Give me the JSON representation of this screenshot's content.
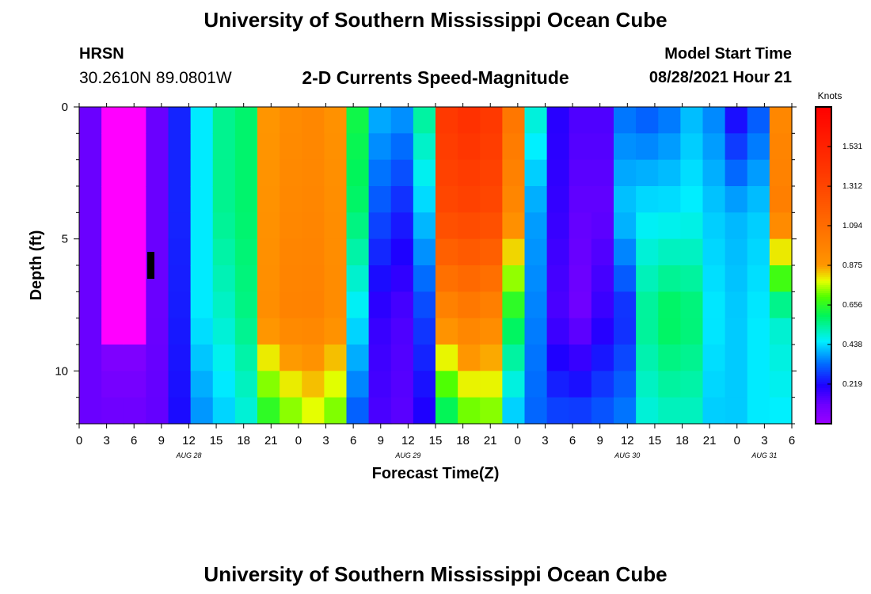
{
  "header": {
    "title": "University of Southern Mississippi Ocean Cube",
    "station": "HRSN",
    "coords": "30.2610N  89.0801W",
    "product": "2-D Currents Speed-Magnitude",
    "model_label": "Model Start Time",
    "model_time": "08/28/2021 Hour 21"
  },
  "footer": {
    "title": "University of Southern Mississippi Ocean Cube"
  },
  "chart_data": {
    "type": "heatmap",
    "title": "2-D Currents Speed-Magnitude",
    "xlabel": "Forecast Time(Z)",
    "ylabel": "Depth (ft)",
    "x_tick_labels": [
      "0",
      "3",
      "6",
      "9",
      "12",
      "15",
      "18",
      "21",
      "0",
      "3",
      "6",
      "9",
      "12",
      "15",
      "18",
      "21",
      "0",
      "3",
      "6",
      "9",
      "12",
      "15",
      "18",
      "21",
      "0",
      "3",
      "6"
    ],
    "x_day_labels": [
      {
        "label": "AUG 28",
        "at_tick": 4
      },
      {
        "label": "AUG 29",
        "at_tick": 12
      },
      {
        "label": "AUG 30",
        "at_tick": 20
      },
      {
        "label": "AUG 31",
        "at_tick": 25
      }
    ],
    "y_tick_labels": [
      "0",
      "5",
      "10"
    ],
    "ylim": [
      0,
      12
    ],
    "y_inverted": true,
    "colorbar": {
      "units": "Knots",
      "ticks": [
        "0.219",
        "0.438",
        "0.656",
        "0.875",
        "1.094",
        "1.312",
        "1.531"
      ],
      "vmin": 0,
      "vmax": 1.75
    },
    "profile": {
      "depth_fractions": [
        0,
        0.33,
        0.66,
        1.0
      ],
      "speeds": [
        [
          0.11,
          0.11,
          0.11,
          0.11
        ],
        [
          0.04,
          0.04,
          0.04,
          0.11
        ],
        [
          0.04,
          0.04,
          0.04,
          0.11
        ],
        [
          0.11,
          0.11,
          0.11,
          0.12
        ],
        [
          0.25,
          0.25,
          0.24,
          0.22
        ],
        [
          0.45,
          0.45,
          0.45,
          0.36
        ],
        [
          0.55,
          0.55,
          0.5,
          0.42
        ],
        [
          0.58,
          0.58,
          0.56,
          0.48
        ],
        [
          0.88,
          0.9,
          0.92,
          0.62
        ],
        [
          0.93,
          0.95,
          0.98,
          0.7
        ],
        [
          0.95,
          0.96,
          0.98,
          0.76
        ],
        [
          0.9,
          0.92,
          0.93,
          0.7
        ],
        [
          0.62,
          0.58,
          0.45,
          0.3
        ],
        [
          0.4,
          0.3,
          0.18,
          0.15
        ],
        [
          0.38,
          0.25,
          0.15,
          0.13
        ],
        [
          0.55,
          0.42,
          0.28,
          0.2
        ],
        [
          1.4,
          1.3,
          0.95,
          0.55
        ],
        [
          1.45,
          1.32,
          1.0,
          0.68
        ],
        [
          1.4,
          1.3,
          0.96,
          0.7
        ],
        [
          1.05,
          0.95,
          0.62,
          0.4
        ],
        [
          0.5,
          0.38,
          0.35,
          0.32
        ],
        [
          0.2,
          0.18,
          0.15,
          0.3
        ],
        [
          0.15,
          0.12,
          0.1,
          0.3
        ],
        [
          0.15,
          0.12,
          0.18,
          0.32
        ],
        [
          0.33,
          0.42,
          0.25,
          0.35
        ],
        [
          0.3,
          0.45,
          0.55,
          0.48
        ],
        [
          0.33,
          0.45,
          0.6,
          0.5
        ],
        [
          0.4,
          0.46,
          0.58,
          0.5
        ],
        [
          0.35,
          0.42,
          0.45,
          0.42
        ],
        [
          0.2,
          0.4,
          0.42,
          0.42
        ],
        [
          0.3,
          0.42,
          0.45,
          0.45
        ],
        [
          0.95,
          1.0,
          0.5,
          0.45
        ]
      ]
    },
    "legend": "right",
    "grid": false
  }
}
